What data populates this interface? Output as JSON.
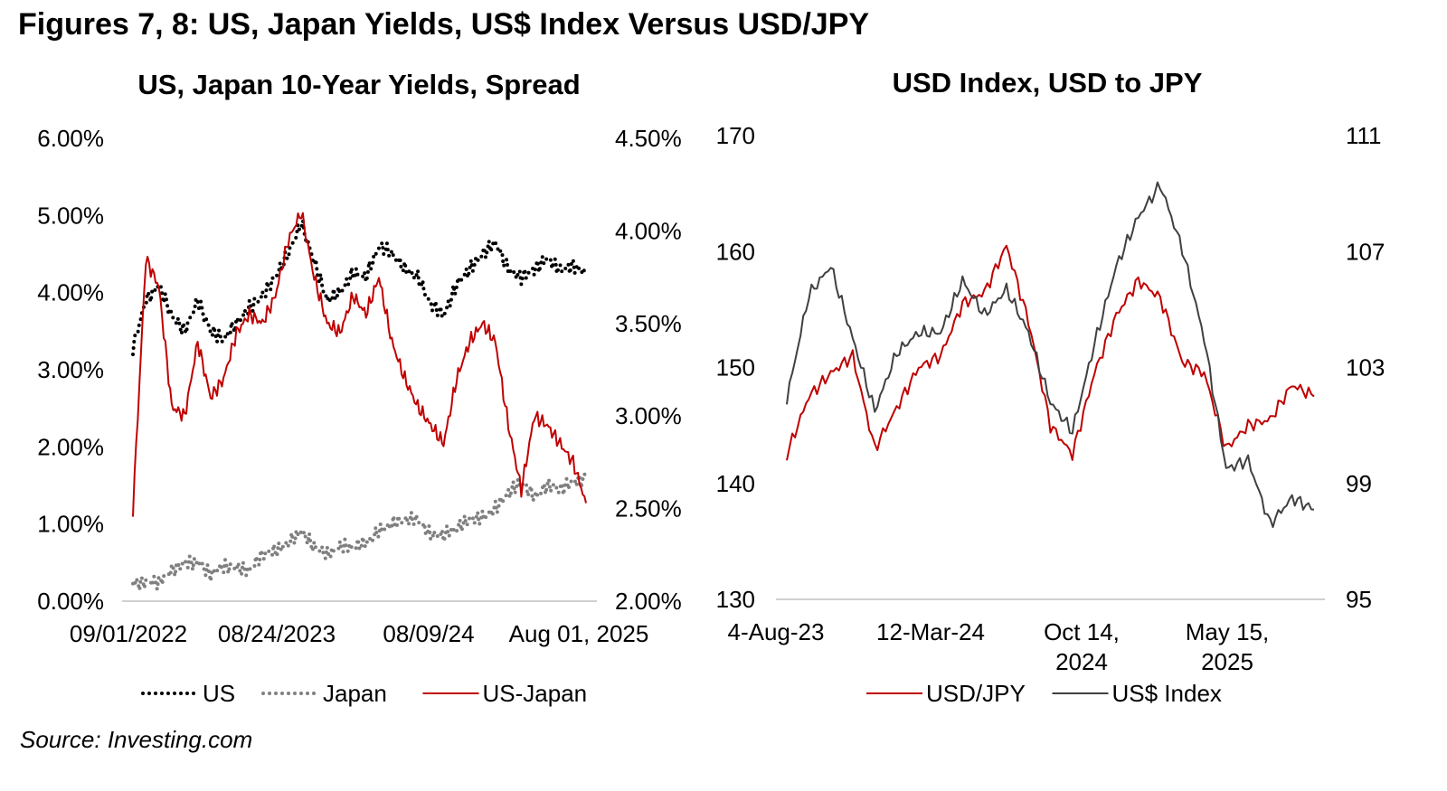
{
  "figure_title": "Figures 7, 8: US, Japan Yields, US$ Index Versus USD/JPY",
  "source": "Source: Investing.com",
  "colors": {
    "us": "#000000",
    "japan": "#808080",
    "spread": "#c00000",
    "usdjpy": "#c00000",
    "usd_index": "#404040",
    "axis": "#d0d0d0"
  },
  "chart_data": [
    {
      "type": "line",
      "title": "US, Japan 10-Year Yields, Spread",
      "x_tick_labels": [
        "09/01/2022",
        "08/24/2023",
        "08/09/24",
        "Aug 01, 2025"
      ],
      "left_axis": {
        "ylim": [
          0,
          6
        ],
        "ticks": [
          "0.00%",
          "1.00%",
          "2.00%",
          "3.00%",
          "4.00%",
          "5.00%",
          "6.00%"
        ]
      },
      "right_axis": {
        "ylim": [
          2.0,
          4.5
        ],
        "ticks": [
          "2.00%",
          "2.50%",
          "3.00%",
          "3.50%",
          "4.00%",
          "4.50%"
        ]
      },
      "x": [
        "2022-09",
        "2022-10",
        "2022-11",
        "2022-12",
        "2023-01",
        "2023-02",
        "2023-03",
        "2023-04",
        "2023-05",
        "2023-06",
        "2023-07",
        "2023-08",
        "2023-09",
        "2023-10",
        "2023-11",
        "2023-12",
        "2024-01",
        "2024-02",
        "2024-03",
        "2024-04",
        "2024-05",
        "2024-06",
        "2024-07",
        "2024-08",
        "2024-09",
        "2024-10",
        "2024-11",
        "2024-12",
        "2025-01",
        "2025-02",
        "2025-03",
        "2025-04",
        "2025-05",
        "2025-06",
        "2025-07",
        "2025-08"
      ],
      "series": [
        {
          "name": "US",
          "axis": "left",
          "style": "dotted",
          "values": [
            3.3,
            3.9,
            4.1,
            3.7,
            3.5,
            3.9,
            3.5,
            3.4,
            3.6,
            3.8,
            3.95,
            4.2,
            4.5,
            4.9,
            4.4,
            3.9,
            4.0,
            4.25,
            4.2,
            4.6,
            4.5,
            4.3,
            4.2,
            3.85,
            3.7,
            4.1,
            4.3,
            4.5,
            4.65,
            4.3,
            4.2,
            4.3,
            4.45,
            4.3,
            4.35,
            4.25
          ]
        },
        {
          "name": "Japan",
          "axis": "left",
          "style": "dotted",
          "values": [
            0.23,
            0.25,
            0.25,
            0.4,
            0.5,
            0.5,
            0.35,
            0.45,
            0.43,
            0.4,
            0.6,
            0.65,
            0.75,
            0.9,
            0.7,
            0.6,
            0.7,
            0.7,
            0.75,
            0.9,
            1.0,
            1.05,
            1.05,
            0.85,
            0.85,
            0.95,
            1.05,
            1.08,
            1.2,
            1.4,
            1.55,
            1.35,
            1.5,
            1.45,
            1.55,
            1.58
          ]
        },
        {
          "name": "US-Japan",
          "axis": "right",
          "style": "solid",
          "values": [
            2.5,
            3.85,
            3.7,
            3.05,
            3.0,
            3.4,
            3.1,
            3.2,
            3.45,
            3.55,
            3.5,
            3.65,
            3.95,
            4.1,
            3.75,
            3.5,
            3.45,
            3.65,
            3.55,
            3.75,
            3.4,
            3.2,
            3.05,
            2.95,
            2.85,
            3.2,
            3.4,
            3.5,
            3.4,
            2.95,
            2.6,
            3.0,
            2.95,
            2.85,
            2.75,
            2.53
          ]
        }
      ],
      "legend": [
        "US",
        "Japan",
        "US-Japan"
      ],
      "legend_position": "bottom"
    },
    {
      "type": "line",
      "title": "USD Index, USD to JPY",
      "x_tick_labels": [
        "4-Aug-23",
        "12-Mar-24",
        "Oct 14,\n2024",
        "May 15,\n2025"
      ],
      "left_axis": {
        "ylim": [
          130,
          170
        ],
        "ticks": [
          "130",
          "140",
          "150",
          "160",
          "170"
        ]
      },
      "right_axis": {
        "ylim": [
          95,
          111
        ],
        "ticks": [
          "95",
          "99",
          "103",
          "107",
          "111"
        ]
      },
      "x": [
        "2023-08",
        "2023-09",
        "2023-10",
        "2023-11",
        "2023-12",
        "2024-01",
        "2024-02",
        "2024-03",
        "2024-04",
        "2024-05",
        "2024-06",
        "2024-07",
        "2024-08",
        "2024-09",
        "2024-10",
        "2024-11",
        "2024-12",
        "2025-01",
        "2025-02",
        "2025-03",
        "2025-04",
        "2025-05",
        "2025-06",
        "2025-07",
        "2025-08"
      ],
      "series": [
        {
          "name": "USD/JPY",
          "axis": "left",
          "style": "solid",
          "values": [
            142.5,
            147.5,
            149.5,
            151.0,
            143.0,
            146.5,
            150.0,
            151.0,
            155.5,
            156.5,
            160.5,
            154.0,
            145.0,
            142.5,
            149.5,
            154.5,
            157.5,
            156.0,
            150.5,
            149.5,
            143.0,
            145.0,
            145.5,
            148.5,
            147.5
          ]
        },
        {
          "name": "US$ Index",
          "axis": "right",
          "style": "solid",
          "values": [
            101.9,
            105.5,
            106.5,
            104.0,
            101.5,
            103.5,
            104.2,
            104.2,
            106.0,
            104.8,
            105.7,
            104.2,
            101.8,
            100.8,
            103.8,
            106.5,
            108.2,
            109.3,
            107.1,
            104.0,
            99.5,
            99.8,
            97.6,
            98.5,
            98.1
          ]
        }
      ],
      "legend": [
        "USD/JPY",
        "US$ Index"
      ],
      "legend_position": "bottom"
    }
  ]
}
